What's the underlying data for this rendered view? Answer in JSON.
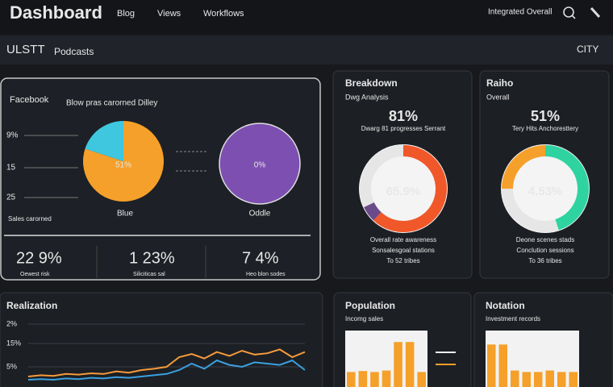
{
  "header": {
    "title": "Dashboard",
    "nav": [
      "Blog",
      "Views",
      "Workflows"
    ],
    "user": "Integrated Overall"
  },
  "subheader": {
    "left": "ULSTT",
    "tab": "Podcasts",
    "right": "CITY"
  },
  "overview": {
    "title": "Facebook",
    "subtitle": "Blow pras carorned Dilley",
    "axis_labels": [
      "9%",
      "15",
      "25"
    ],
    "footnote": "Sales carorned",
    "pie": {
      "values": [
        80,
        20
      ],
      "colors": [
        "#f5a02a",
        "#3fc7e0"
      ],
      "label": "51%",
      "caption": "Blue"
    },
    "circle": {
      "color": "#7d4fb0",
      "label": "0%",
      "caption": "Oddle"
    },
    "stats": [
      "22 9%",
      "1 23%",
      "7 4%"
    ],
    "stat_notes": [
      "Oewest risk",
      "Siliciticas sal",
      "Heo blon sodes"
    ]
  },
  "breakdown": {
    "title": "Breakdown",
    "subtitle": "Dwg Analysis",
    "big": "81%",
    "note": "Dwarg 81 progresses Serrant",
    "donut": {
      "values": [
        62,
        6,
        32
      ],
      "colors": [
        "#f0582a",
        "#6b4a8a",
        "#e6e6e6"
      ],
      "center": "65.9%"
    },
    "footer": [
      "Overall rate awareness",
      "Sonsalesgoal stations",
      "To 52 tribes"
    ]
  },
  "ratio": {
    "title": "Raiho",
    "subtitle": "Overall",
    "big": "51%",
    "note": "Tery Hits Anchoresttery",
    "donut": {
      "values": [
        45,
        30,
        25
      ],
      "colors": [
        "#2fd3a0",
        "#e6e6e6",
        "#f5a02a"
      ],
      "center": "4.53%"
    },
    "footer": [
      "Deone scenes stads",
      "Conclution sessions",
      "To 36 tribes"
    ]
  },
  "realization": {
    "title": "Realization",
    "axis_labels": [
      "2%",
      "15%",
      "5%"
    ],
    "ylim": [
      0,
      100
    ],
    "series": [
      {
        "color": "#f59a3a",
        "values": [
          10,
          12,
          11,
          14,
          13,
          15,
          14,
          18,
          16,
          20,
          22,
          25,
          40,
          45,
          38,
          48,
          42,
          50,
          44,
          46,
          52,
          40,
          48
        ]
      },
      {
        "color": "#3aa0e0",
        "values": [
          5,
          6,
          5,
          7,
          6,
          8,
          7,
          9,
          8,
          10,
          12,
          14,
          20,
          30,
          22,
          35,
          28,
          25,
          32,
          30,
          28,
          35,
          20
        ]
      }
    ]
  },
  "population": {
    "title": "Population",
    "subtitle": "Incomg sales",
    "ylim": [
      0,
      100
    ],
    "color": "#f5a02a",
    "values": [
      30,
      32,
      30,
      33,
      90,
      90,
      30
    ]
  },
  "notation": {
    "title": "Notation",
    "subtitle": "Investment records",
    "ylim": [
      0,
      100
    ],
    "color": "#f5a02a",
    "values": [
      85,
      85,
      33,
      30,
      30,
      33,
      30,
      30
    ]
  }
}
